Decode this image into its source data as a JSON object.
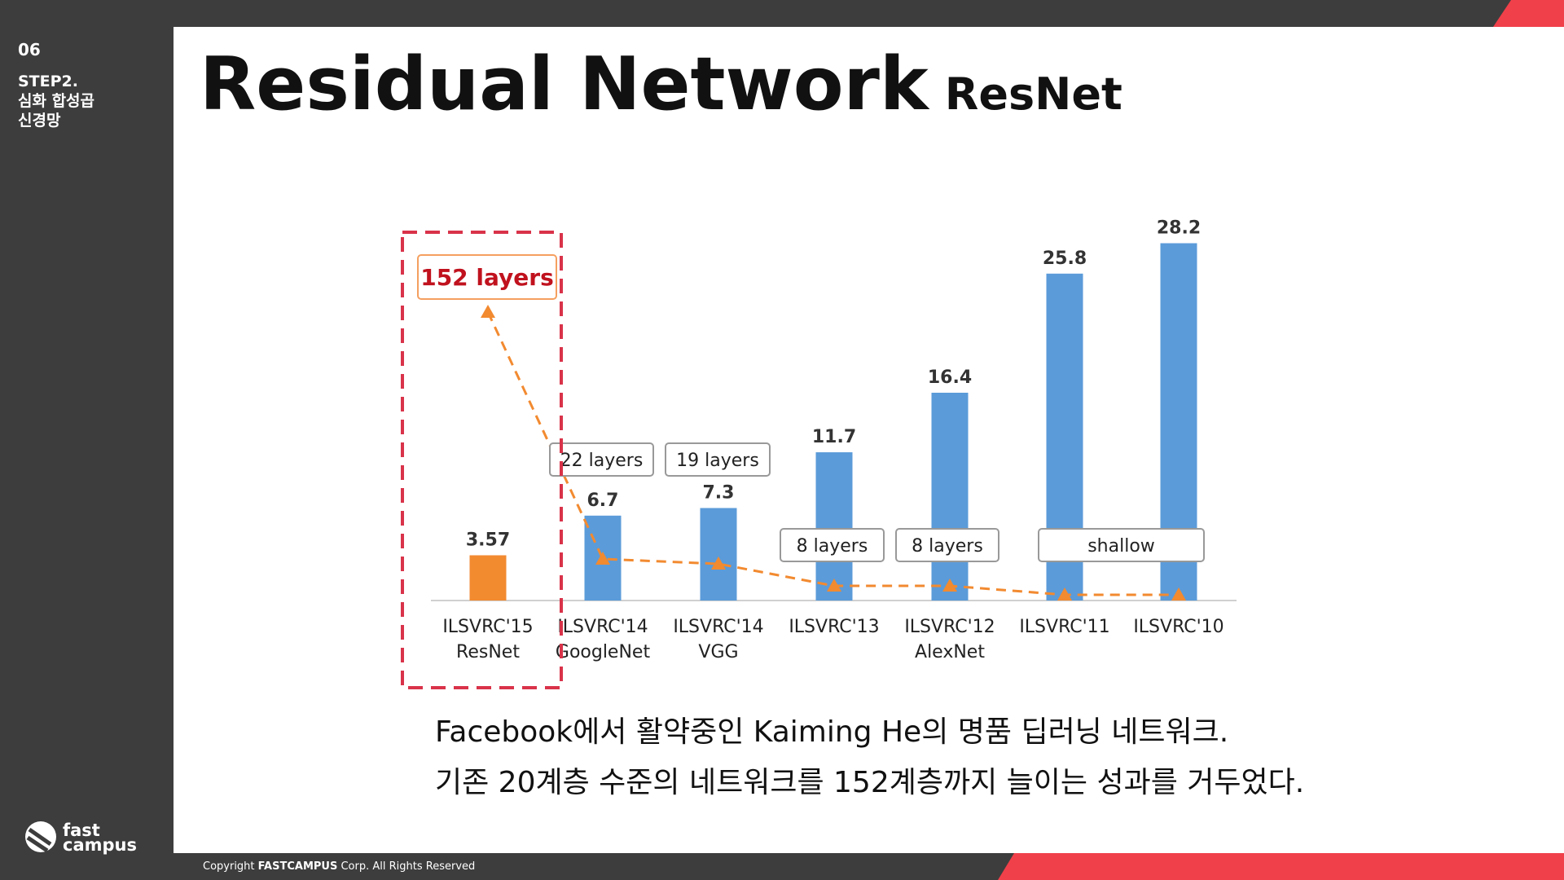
{
  "sidebar": {
    "number": "06",
    "step": "STEP2.",
    "topic_lines": [
      "심화 합성곱",
      "신경망"
    ],
    "logo_lines": [
      "fast",
      "campus"
    ]
  },
  "header": {
    "title": "Residual Network",
    "subtitle": "ResNet"
  },
  "chart_data": {
    "type": "bar",
    "categories": [
      [
        "ILSVRC'15",
        "ResNet"
      ],
      [
        "ILSVRC'14",
        "GoogleNet"
      ],
      [
        "ILSVRC'14",
        "VGG"
      ],
      [
        "ILSVRC'13"
      ],
      [
        "ILSVRC'12",
        "AlexNet"
      ],
      [
        "ILSVRC'11"
      ],
      [
        "ILSVRC'10"
      ]
    ],
    "values": [
      3.57,
      6.7,
      7.3,
      11.7,
      16.4,
      25.8,
      28.2
    ],
    "colors": [
      "#f28a30",
      "#5b9bd9",
      "#5b9bd9",
      "#5b9bd9",
      "#5b9bd9",
      "#5b9bd9",
      "#5b9bd9"
    ],
    "annotations": [
      "152 layers",
      "22 layers",
      "19 layers",
      "8 layers",
      "8 layers",
      "shallow"
    ]
  },
  "caption": {
    "lines": [
      "Facebook에서 활약중인 Kaiming He의 명품 딥러닝 네트워크.",
      "기존 20계층 수준의 네트워크를 152계층까지 늘이는 성과를 거두었다."
    ]
  },
  "footer": {
    "prefix": "Copyright",
    "brand": "FASTCAMPUS",
    "suffix": "Corp. All Rights Reserved"
  }
}
